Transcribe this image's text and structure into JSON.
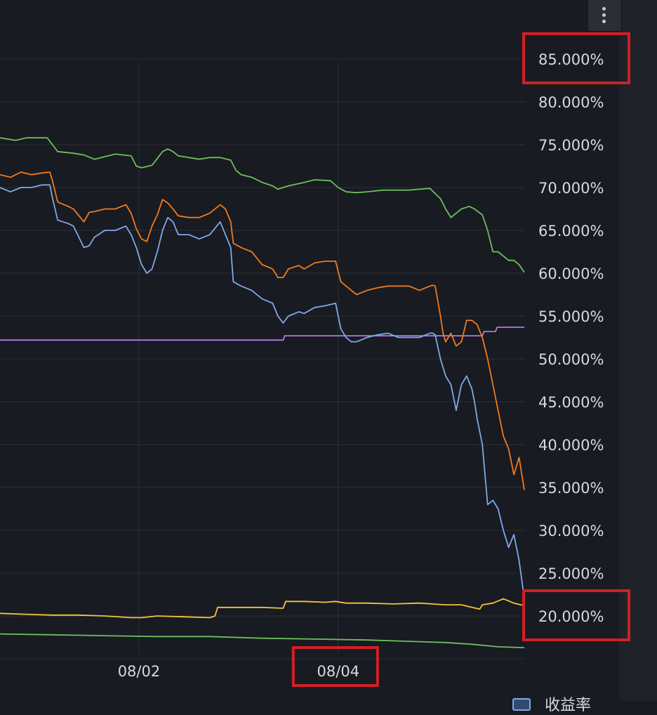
{
  "chart_data": {
    "type": "line",
    "title": "",
    "xlabel": "",
    "ylabel": "",
    "ylim": [
      14.0,
      90.0
    ],
    "y_ticks": [
      "85.000%",
      "80.000%",
      "75.000%",
      "70.000%",
      "65.000%",
      "60.000%",
      "55.000%",
      "50.000%",
      "45.000%",
      "40.000%",
      "35.000%",
      "30.000%",
      "25.000%",
      "20.000%"
    ],
    "y_tick_values": [
      85,
      80,
      75,
      70,
      65,
      60,
      55,
      50,
      45,
      40,
      35,
      30,
      25,
      20
    ],
    "x_range": [
      0,
      100
    ],
    "x_ticks": [
      {
        "label": "08/02",
        "x": 26.5
      },
      {
        "label": "08/04",
        "x": 64.5
      }
    ],
    "highlighted_ticks": [
      "85.000%",
      "20.000%",
      "08/04"
    ],
    "series": [
      {
        "name": "green-upper",
        "color": "#6cbf5e",
        "x": [
          0,
          3,
          5,
          9,
          10,
          11,
          14,
          16,
          18,
          22,
          25,
          26,
          27,
          29,
          31,
          32,
          33,
          34,
          36,
          38,
          40,
          42,
          44,
          45,
          46,
          48,
          50,
          52,
          53,
          55,
          58,
          60,
          63,
          64.5,
          66,
          68,
          70,
          73,
          75,
          78,
          80,
          82,
          84,
          85,
          86,
          88,
          89.5,
          90.5,
          92,
          93,
          94,
          95,
          96,
          97,
          98,
          99,
          100
        ],
        "y": [
          75.8,
          75.5,
          75.8,
          75.8,
          75.0,
          74.2,
          74.0,
          73.8,
          73.3,
          73.9,
          73.7,
          72.5,
          72.3,
          72.6,
          74.2,
          74.5,
          74.2,
          73.7,
          73.5,
          73.3,
          73.5,
          73.5,
          73.2,
          72.0,
          71.5,
          71.2,
          70.6,
          70.2,
          69.8,
          70.2,
          70.6,
          70.9,
          70.8,
          70.0,
          69.5,
          69.4,
          69.5,
          69.7,
          69.7,
          69.7,
          69.8,
          69.9,
          68.7,
          67.5,
          66.5,
          67.5,
          67.8,
          67.5,
          66.8,
          65.0,
          62.5,
          62.5,
          62.0,
          61.5,
          61.5,
          61.0,
          60.1
        ]
      },
      {
        "name": "orange",
        "color": "#f07a1e",
        "x": [
          0,
          2,
          4,
          6,
          8,
          9.5,
          10,
          11,
          13,
          14,
          16,
          17,
          18,
          20,
          22,
          24,
          25,
          26,
          27,
          28,
          29,
          30,
          31,
          32,
          33,
          34,
          36,
          38,
          40,
          42,
          43,
          44,
          44.5,
          46,
          48,
          50,
          52,
          53,
          54,
          55,
          57,
          58,
          60,
          62,
          64,
          65,
          66,
          67,
          68,
          70,
          72,
          74,
          76,
          78,
          80,
          82,
          82.5,
          83,
          84,
          84.5,
          85,
          86,
          87,
          88,
          89,
          90,
          91,
          92,
          93,
          94,
          95,
          96,
          97,
          98,
          99,
          100
        ],
        "y": [
          71.5,
          71.2,
          71.8,
          71.5,
          71.7,
          71.8,
          70.8,
          68.3,
          67.8,
          67.5,
          66.0,
          67.1,
          67.2,
          67.5,
          67.5,
          68.0,
          67.0,
          65.2,
          64.0,
          63.7,
          65.5,
          66.8,
          68.6,
          68.2,
          67.5,
          66.7,
          66.5,
          66.5,
          67.0,
          68.0,
          67.5,
          66.0,
          63.5,
          63.0,
          62.5,
          61.0,
          60.5,
          59.5,
          59.5,
          60.5,
          60.9,
          60.5,
          61.2,
          61.4,
          61.4,
          59.0,
          58.5,
          58.0,
          57.5,
          58.0,
          58.3,
          58.5,
          58.5,
          58.5,
          58.0,
          58.5,
          58.6,
          58.5,
          55.0,
          53.0,
          52.0,
          53.0,
          51.5,
          52.0,
          54.5,
          54.5,
          54.0,
          52.5,
          50.0,
          47.0,
          44.0,
          41.0,
          39.5,
          36.5,
          38.5,
          34.7
        ]
      },
      {
        "name": "blue-yield",
        "color": "#7fa8e8",
        "x": [
          0,
          2,
          4,
          6,
          8,
          9.5,
          10,
          11,
          12,
          13,
          14,
          16,
          17,
          18,
          20,
          22,
          24,
          25,
          26,
          27,
          28,
          29,
          30,
          31,
          32,
          33,
          34,
          36,
          38,
          40,
          42,
          43,
          44,
          44.5,
          46,
          48,
          50,
          52,
          53,
          54,
          55,
          57,
          58,
          60,
          62,
          64,
          65,
          66,
          67,
          68,
          70,
          72,
          74,
          76,
          78,
          80,
          82,
          82.5,
          83,
          84,
          85,
          86,
          87,
          88,
          89,
          90,
          90.5,
          91,
          92,
          93,
          94,
          95,
          96,
          97,
          98,
          99,
          100
        ],
        "y": [
          70.0,
          69.5,
          70.0,
          70.0,
          70.3,
          70.3,
          68.8,
          66.2,
          66.0,
          65.8,
          65.5,
          63.0,
          63.2,
          64.2,
          65.0,
          65.0,
          65.5,
          64.5,
          63.0,
          61.0,
          60.0,
          60.5,
          62.5,
          65.0,
          66.5,
          66.0,
          64.5,
          64.5,
          64.0,
          64.5,
          66.0,
          64.5,
          63.0,
          59.0,
          58.5,
          58.0,
          57.0,
          56.5,
          55.0,
          54.2,
          55.0,
          55.5,
          55.3,
          56.0,
          56.2,
          56.5,
          53.5,
          52.5,
          52.0,
          52.0,
          52.5,
          52.8,
          53.0,
          52.5,
          52.5,
          52.5,
          53.0,
          53.0,
          52.8,
          50.0,
          48.0,
          47.0,
          44.0,
          47.0,
          48.0,
          46.5,
          45.0,
          43.0,
          40.0,
          33.0,
          33.5,
          32.5,
          30.0,
          28.0,
          29.5,
          26.5,
          22.0
        ]
      },
      {
        "name": "purple",
        "color": "#b07ae0",
        "x": [
          0,
          54,
          54.3,
          78,
          92,
          92.3,
          94.5,
          94.8,
          100
        ],
        "y": [
          52.2,
          52.2,
          52.7,
          52.7,
          52.7,
          53.2,
          53.2,
          53.7,
          53.7
        ]
      },
      {
        "name": "yellow",
        "color": "#f2c53a",
        "x": [
          0,
          5,
          10,
          15,
          20,
          25,
          27,
          30,
          35,
          40,
          41,
          41.5,
          45,
          50,
          54,
          54.5,
          58,
          62,
          64,
          66,
          70,
          75,
          80,
          85,
          88,
          90,
          91.5,
          92,
          94,
          96,
          98,
          100
        ],
        "y": [
          20.3,
          20.2,
          20.1,
          20.1,
          20.0,
          19.8,
          19.8,
          20.0,
          19.9,
          19.8,
          20.0,
          21.0,
          21.0,
          21.0,
          20.9,
          21.7,
          21.7,
          21.6,
          21.7,
          21.5,
          21.5,
          21.4,
          21.5,
          21.3,
          21.3,
          21.0,
          20.8,
          21.3,
          21.5,
          22.0,
          21.5,
          21.2
        ]
      },
      {
        "name": "green-lower",
        "color": "#6cbf5e",
        "x": [
          0,
          10,
          20,
          30,
          40,
          50,
          60,
          70,
          80,
          85,
          90,
          95,
          100
        ],
        "y": [
          17.9,
          17.8,
          17.7,
          17.6,
          17.6,
          17.4,
          17.3,
          17.2,
          17.0,
          16.9,
          16.7,
          16.4,
          16.3
        ]
      }
    ],
    "legend": [
      {
        "label": "收益率",
        "color": "#7fa8e8"
      }
    ]
  }
}
